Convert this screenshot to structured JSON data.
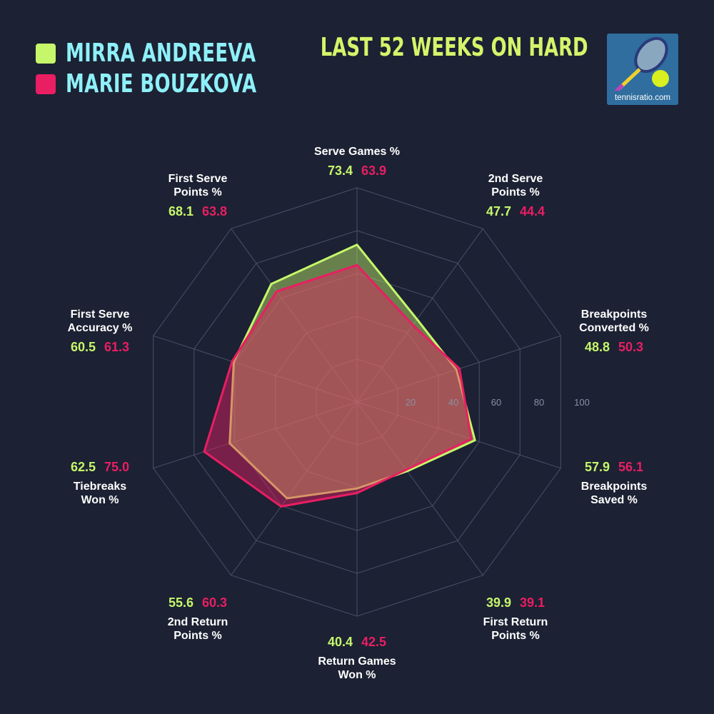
{
  "title": "LAST 52 WEEKS ON HARD",
  "logo_text": "tennisratio.com",
  "players": [
    {
      "name": "MIRRA ANDREEVA",
      "color": "#c6f76a"
    },
    {
      "name": "MARIE BOUZKOVA",
      "color": "#e91e63"
    }
  ],
  "chart_data": {
    "type": "radar",
    "range": [
      0,
      100
    ],
    "ticks": [
      "20",
      "40",
      "60",
      "80",
      "100"
    ],
    "axes": [
      "Serve Games %",
      "2nd Serve Points %",
      "Breakpoints Converted %",
      "Breakpoints Saved %",
      "First Return Points %",
      "Return Games Won %",
      "2nd Return Points %",
      "Tiebreaks Won %",
      "First Serve Accuracy %",
      "First Serve Points %"
    ],
    "axis_lines": [
      [
        "Serve Games %"
      ],
      [
        "2nd Serve",
        "Points %"
      ],
      [
        "Breakpoints",
        "Converted %"
      ],
      [
        "Breakpoints",
        "Saved %"
      ],
      [
        "First Return",
        "Points %"
      ],
      [
        "Return Games",
        "Won %"
      ],
      [
        "2nd Return",
        "Points %"
      ],
      [
        "Tiebreaks",
        "Won %"
      ],
      [
        "First Serve",
        "Accuracy %"
      ],
      [
        "First Serve",
        "Points %"
      ]
    ],
    "series": [
      {
        "name": "MIRRA ANDREEVA",
        "color": "#c6f76a",
        "values": [
          73.4,
          47.7,
          48.8,
          57.9,
          39.9,
          40.4,
          55.6,
          62.5,
          60.5,
          68.1
        ]
      },
      {
        "name": "MARIE BOUZKOVA",
        "color": "#e91e63",
        "values": [
          63.9,
          44.4,
          50.3,
          56.1,
          39.1,
          42.5,
          60.3,
          75.0,
          61.3,
          63.8
        ]
      }
    ]
  }
}
